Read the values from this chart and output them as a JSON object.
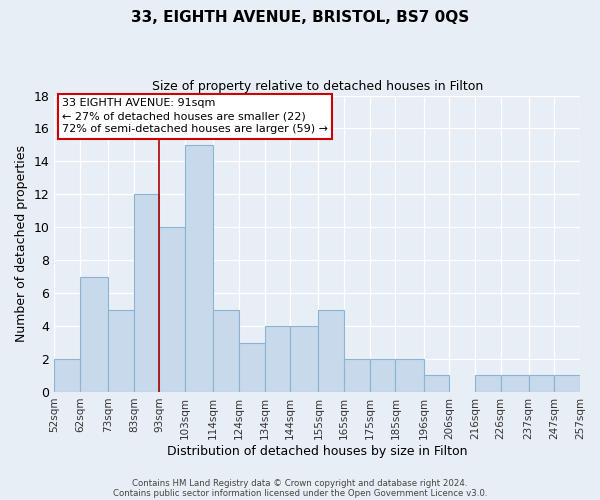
{
  "title": "33, EIGHTH AVENUE, BRISTOL, BS7 0QS",
  "subtitle": "Size of property relative to detached houses in Filton",
  "xlabel": "Distribution of detached houses by size in Filton",
  "ylabel": "Number of detached properties",
  "bar_left_edges": [
    52,
    62,
    73,
    83,
    93,
    103,
    114,
    124,
    134,
    144,
    155,
    165,
    175,
    185,
    196,
    206,
    216,
    226,
    237,
    247
  ],
  "bar_widths": [
    10,
    11,
    10,
    10,
    10,
    11,
    10,
    10,
    10,
    11,
    10,
    10,
    10,
    11,
    10,
    10,
    10,
    11,
    10,
    10
  ],
  "bar_heights": [
    2,
    7,
    5,
    12,
    10,
    15,
    5,
    3,
    4,
    4,
    5,
    2,
    2,
    2,
    1,
    0,
    1,
    1,
    1,
    1
  ],
  "tick_labels": [
    "52sqm",
    "62sqm",
    "73sqm",
    "83sqm",
    "93sqm",
    "103sqm",
    "114sqm",
    "124sqm",
    "134sqm",
    "144sqm",
    "155sqm",
    "165sqm",
    "175sqm",
    "185sqm",
    "196sqm",
    "206sqm",
    "216sqm",
    "226sqm",
    "237sqm",
    "247sqm",
    "257sqm"
  ],
  "tick_positions": [
    52,
    62,
    73,
    83,
    93,
    103,
    114,
    124,
    134,
    144,
    155,
    165,
    175,
    185,
    196,
    206,
    216,
    226,
    237,
    247,
    257
  ],
  "bar_color": "#c9d9ec",
  "bar_edge_color": "#8ab4d4",
  "bg_color": "#e8eef5",
  "red_line_x": 93,
  "ylim": [
    0,
    18
  ],
  "yticks": [
    0,
    2,
    4,
    6,
    8,
    10,
    12,
    14,
    16,
    18
  ],
  "annotation_line1": "33 EIGHTH AVENUE: 91sqm",
  "annotation_line2": "← 27% of detached houses are smaller (22)",
  "annotation_line3": "72% of semi-detached houses are larger (59) →",
  "annotation_box_color": "#ffffff",
  "annotation_box_edge": "#cc0000",
  "footer_line1": "Contains HM Land Registry data © Crown copyright and database right 2024.",
  "footer_line2": "Contains public sector information licensed under the Open Government Licence v3.0.",
  "xlim_left": 52,
  "xlim_right": 257
}
